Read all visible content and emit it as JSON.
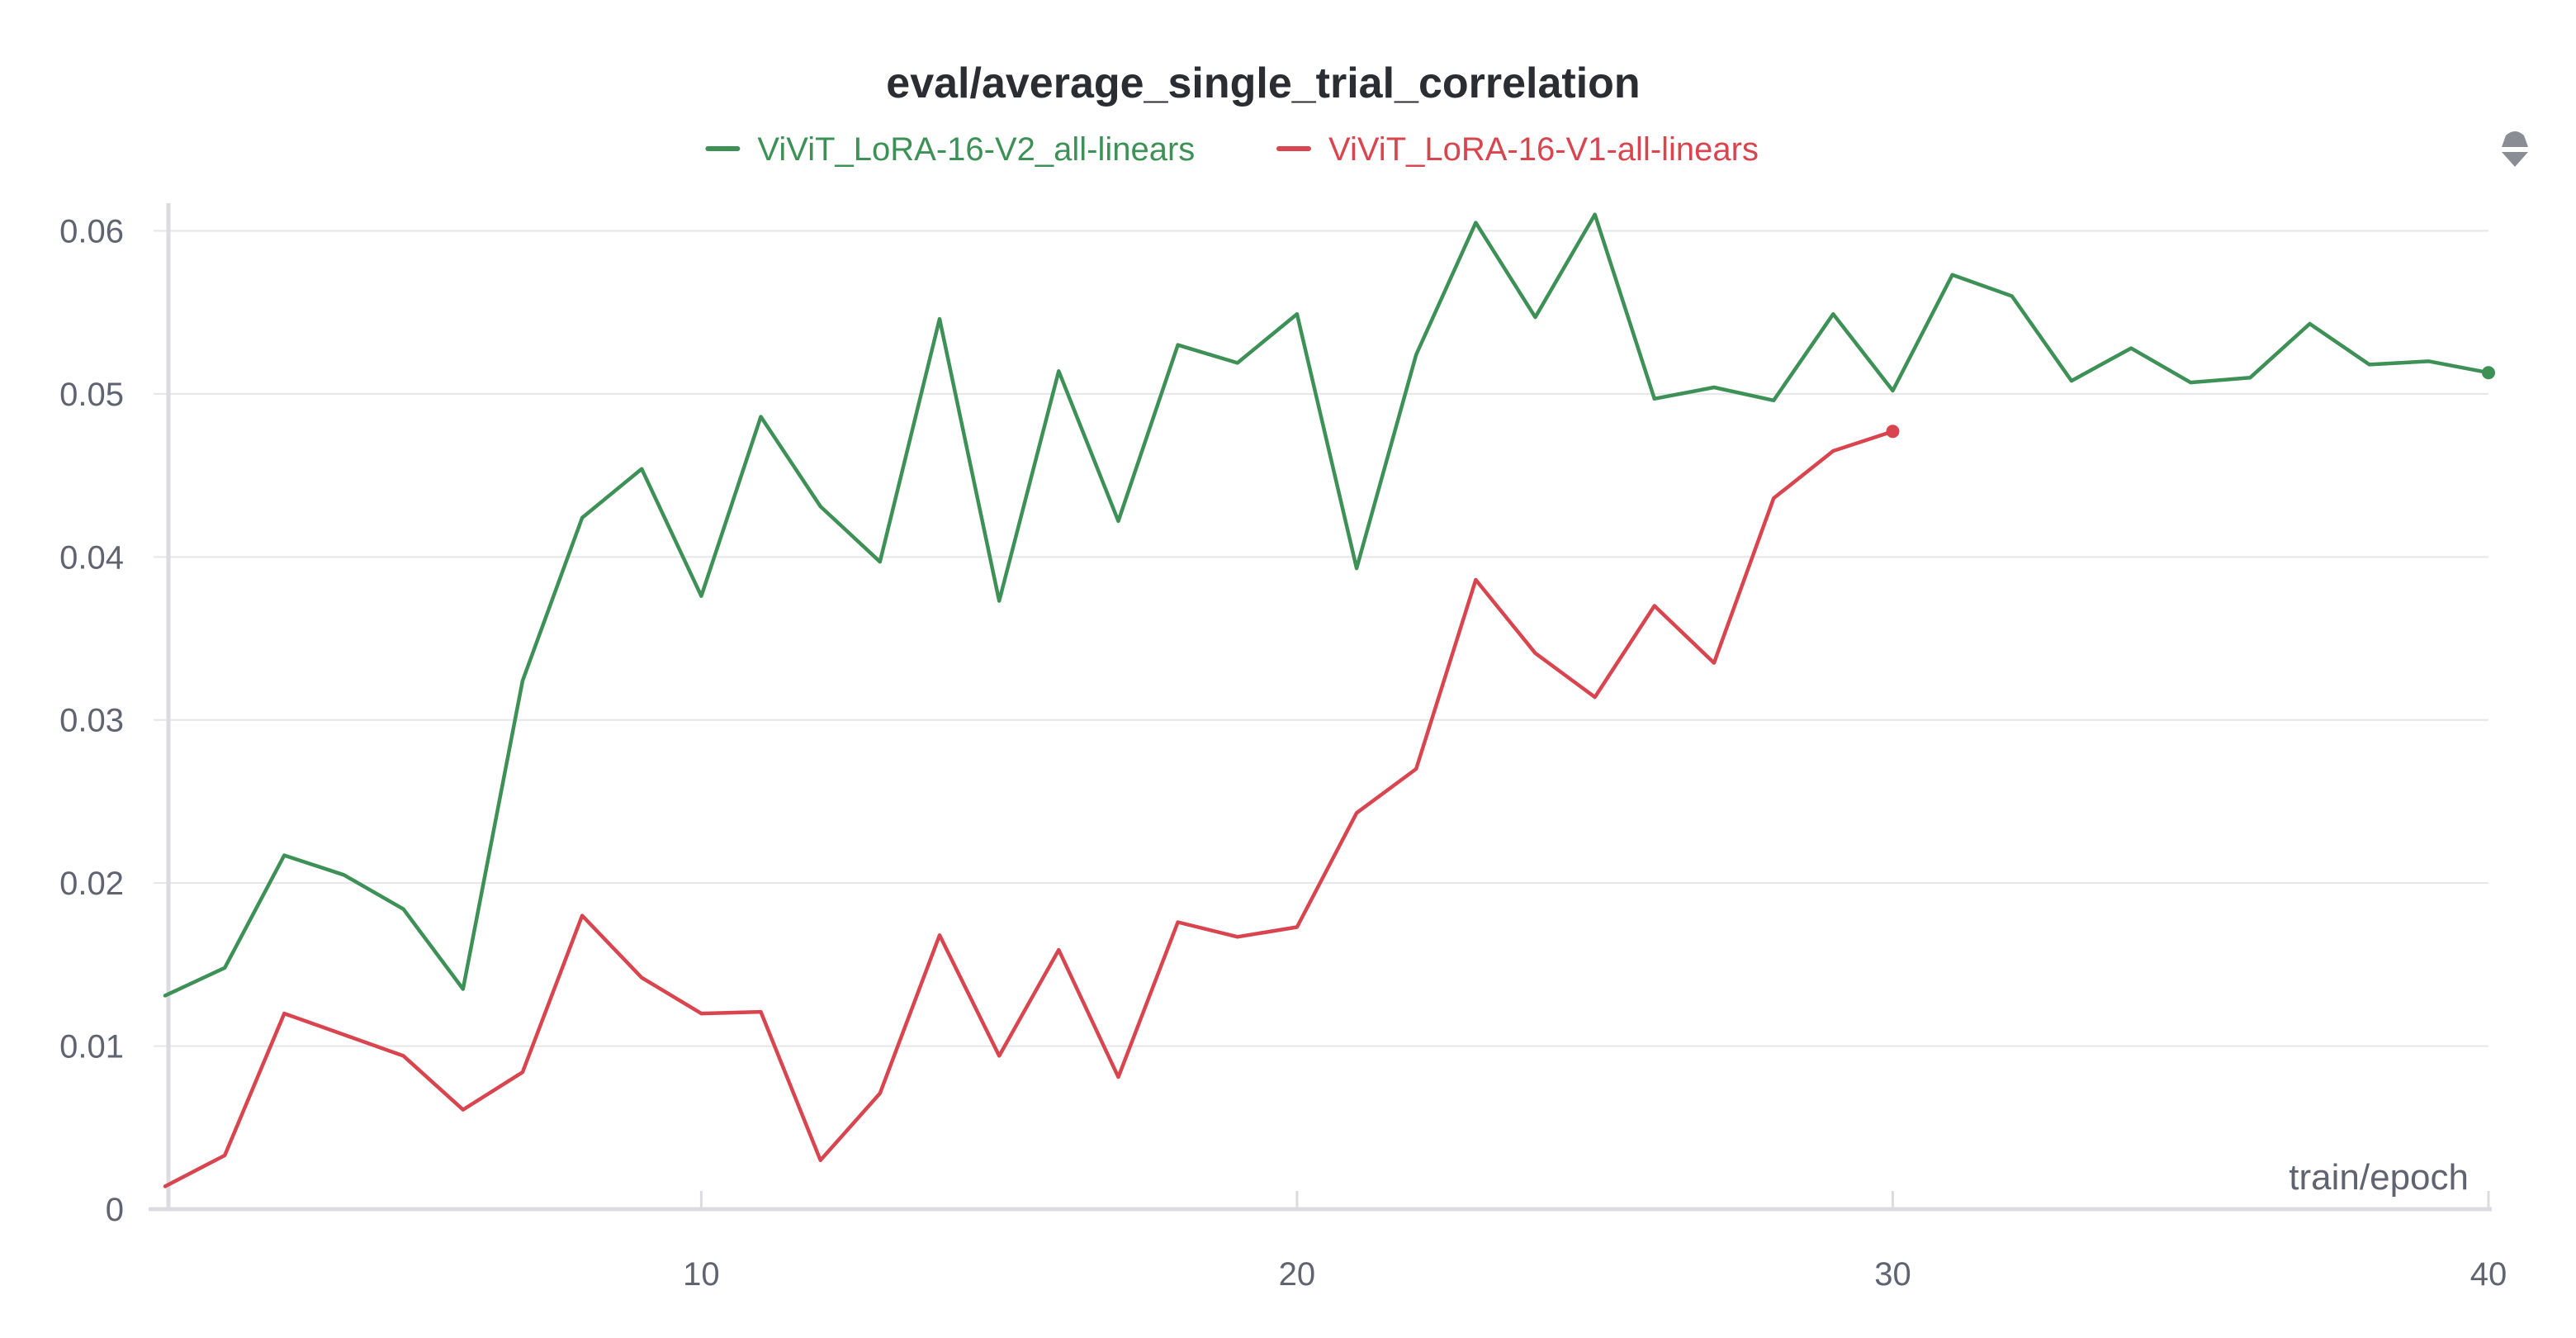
{
  "chart_data": {
    "type": "line",
    "title": "eval/average_single_trial_correlation",
    "xlabel": "train/epoch",
    "ylabel": "",
    "xlim": [
      1,
      40
    ],
    "ylim": [
      0,
      0.062
    ],
    "xticks": [
      10,
      20,
      30,
      40
    ],
    "yticks": [
      0,
      0.01,
      0.02,
      0.03,
      0.04,
      0.05,
      0.06
    ],
    "ytick_labels": [
      "0",
      "0.01",
      "0.02",
      "0.03",
      "0.04",
      "0.05",
      "0.06"
    ],
    "grid": true,
    "legend_position": "top-center",
    "series": [
      {
        "name": "ViViT_LoRA-16-V2_all-linears",
        "color": "#3d9156",
        "x": [
          1,
          2,
          3,
          4,
          5,
          6,
          7,
          8,
          9,
          10,
          11,
          12,
          13,
          14,
          15,
          16,
          17,
          18,
          19,
          20,
          21,
          22,
          23,
          24,
          25,
          26,
          27,
          28,
          29,
          30,
          31,
          32,
          33,
          34,
          35,
          36,
          37,
          38,
          39,
          40
        ],
        "y": [
          0.0131,
          0.0148,
          0.0217,
          0.0205,
          0.0184,
          0.0135,
          0.0324,
          0.0424,
          0.0454,
          0.0376,
          0.0486,
          0.0431,
          0.0397,
          0.0546,
          0.0373,
          0.0514,
          0.0422,
          0.053,
          0.0519,
          0.0549,
          0.0393,
          0.0524,
          0.0605,
          0.0547,
          0.061,
          0.0497,
          0.0504,
          0.0496,
          0.0549,
          0.0502,
          0.0573,
          0.056,
          0.0508,
          0.0528,
          0.0507,
          0.051,
          0.0543,
          0.0518,
          0.052,
          0.0513
        ],
        "end_marker": true
      },
      {
        "name": "ViViT_LoRA-16-V1-all-linears",
        "color": "#d9454e",
        "x": [
          1,
          2,
          3,
          4,
          5,
          6,
          7,
          8,
          9,
          10,
          11,
          12,
          13,
          14,
          15,
          16,
          17,
          18,
          19,
          20,
          21,
          22,
          23,
          24,
          25,
          26,
          27,
          28,
          29,
          30
        ],
        "y": [
          0.0014,
          0.0033,
          0.012,
          0.0107,
          0.0094,
          0.0061,
          0.0084,
          0.018,
          0.0142,
          0.012,
          0.0121,
          0.003,
          0.0071,
          0.0168,
          0.0094,
          0.0159,
          0.0081,
          0.0176,
          0.0167,
          0.0173,
          0.0243,
          0.027,
          0.0386,
          0.0341,
          0.0314,
          0.037,
          0.0335,
          0.0436,
          0.0465,
          0.0477
        ],
        "end_marker": true
      }
    ]
  },
  "controls": {
    "sort_icon": "sort-toggle-icon"
  }
}
